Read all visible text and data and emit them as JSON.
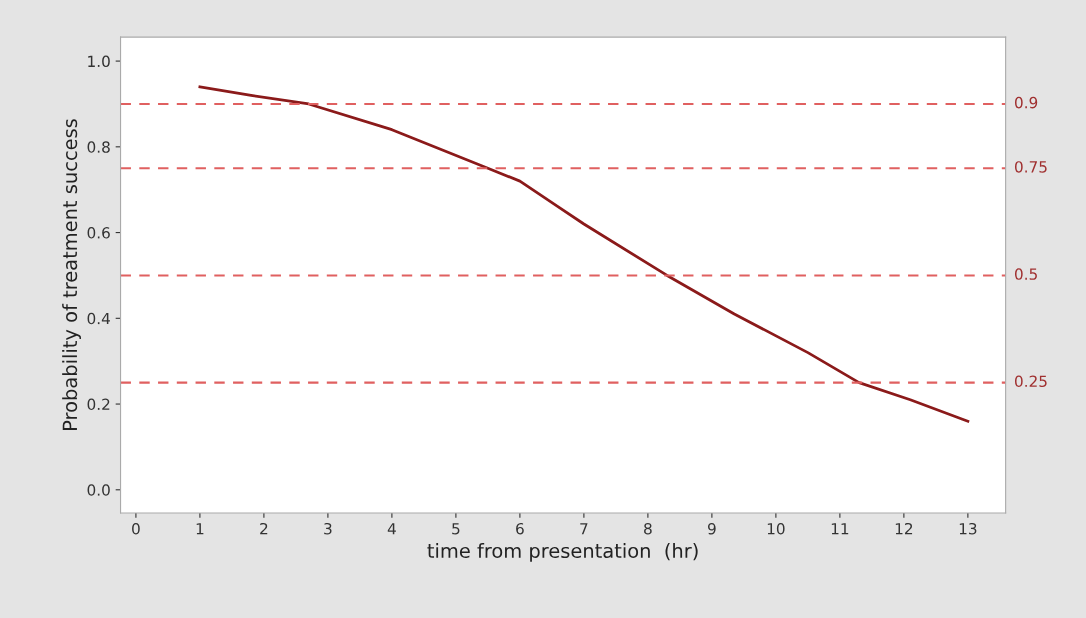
{
  "chart_data": {
    "type": "line",
    "xlabel": "time from presentation  (hr)",
    "ylabel": "Probability of treatment success",
    "x": [
      1,
      1.8,
      2.7,
      4,
      5.5,
      6,
      6.6,
      7,
      8.3,
      9.35,
      10.5,
      11.3,
      12.1,
      13
    ],
    "series": [
      {
        "color": "#8b1a1a",
        "values": [
          0.94,
          0.92,
          0.9,
          0.84,
          0.75,
          0.72,
          0.66,
          0.62,
          0.5,
          0.41,
          0.32,
          0.25,
          0.21,
          0.16
        ]
      }
    ],
    "xlim": [
      -0.24,
      13.59
    ],
    "ylim": [
      -0.054,
      1.056
    ],
    "xticks": [
      0,
      1,
      2,
      3,
      4,
      5,
      6,
      7,
      8,
      9,
      10,
      11,
      12,
      13
    ],
    "yticks": [
      {
        "value": 0,
        "label": "0.0"
      },
      0.2,
      0.4,
      0.6,
      0.8,
      {
        "value": 1,
        "label": "1.0"
      }
    ],
    "ref_lines": [
      {
        "axis": "y",
        "value": 0.9,
        "label": "0.9",
        "color": "#e06060",
        "line_style": "dashed"
      },
      {
        "axis": "y",
        "value": 0.75,
        "label": "0.75",
        "color": "#e06060",
        "line_style": "dashed"
      },
      {
        "axis": "y",
        "value": 0.5,
        "label": "0.5",
        "color": "#e06060",
        "line_style": "dashed"
      },
      {
        "axis": "y",
        "value": 0.25,
        "label": "0.25",
        "color": "#e06060",
        "line_style": "dashed"
      }
    ],
    "grid": false,
    "legend": false,
    "marker": "none",
    "line_style": "solid"
  }
}
